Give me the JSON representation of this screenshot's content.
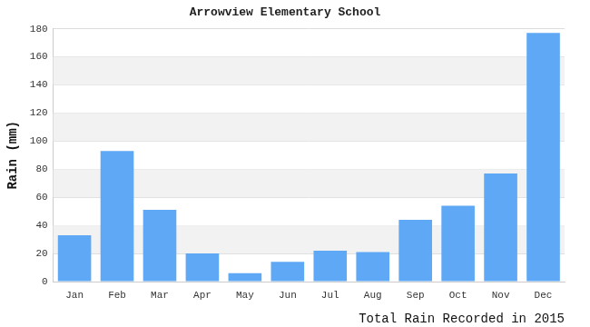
{
  "chart_data": {
    "type": "bar",
    "title": "Arrowview Elementary School",
    "y_label": "Rain (mm)",
    "x_label": "Total Rain Recorded in 2015",
    "categories": [
      "Jan",
      "Feb",
      "Mar",
      "Apr",
      "May",
      "Jun",
      "Jul",
      "Aug",
      "Sep",
      "Oct",
      "Nov",
      "Dec"
    ],
    "values": [
      33,
      93,
      51,
      20,
      6,
      14,
      22,
      21,
      44,
      54,
      77,
      177
    ],
    "color": "#5fa8f5",
    "ylim": [
      0,
      180
    ],
    "yticks": [
      0,
      20,
      40,
      60,
      80,
      100,
      120,
      140,
      160,
      180
    ],
    "grid": true
  }
}
